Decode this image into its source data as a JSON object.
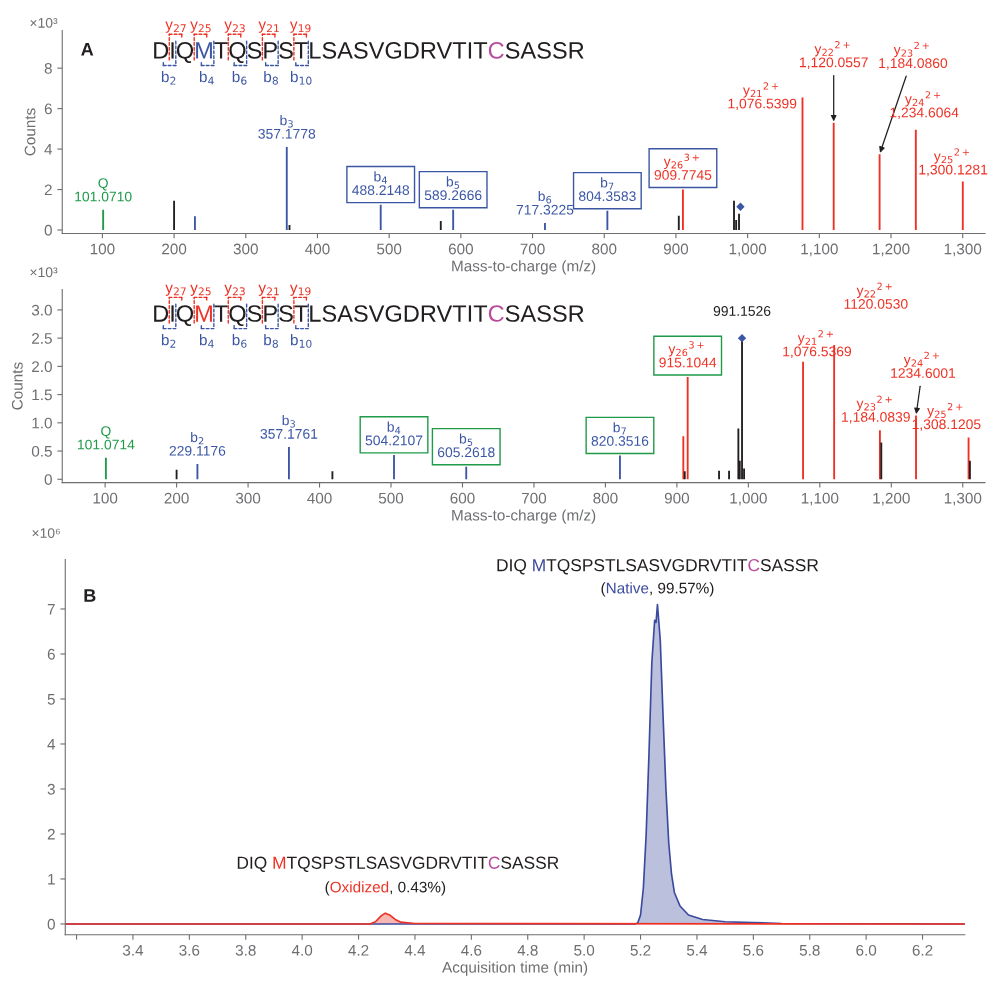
{
  "chart_data": [
    {
      "type": "bar",
      "xlabel": "Mass-to-charge (m/z)",
      "ylabel": "Counts",
      "xlim": [
        44,
        1331
      ],
      "ylim": [
        -0.17,
        9.86
      ],
      "xticks": [
        100,
        200,
        300,
        400,
        500,
        600,
        700,
        800,
        900,
        {
          "value": 1000,
          "label": "1,000"
        },
        {
          "value": 1100,
          "label": "1,100"
        },
        {
          "value": 1200,
          "label": "1,200"
        },
        {
          "value": 1300,
          "label": "1,300"
        }
      ],
      "yticks": [
        0,
        2,
        4,
        6,
        8
      ],
      "series": [
        {
          "color": "#1e9a48",
          "x": [
            101.07
          ],
          "values": [
            1.0
          ]
        },
        {
          "color": "#3b56a5",
          "x": [
            229.1,
            357.18,
            488.21,
            589.27,
            717.32,
            804.36
          ],
          "values": [
            0.68,
            4.1,
            1.25,
            1.0,
            0.35,
            0.95
          ]
        },
        {
          "color": "#ee3124",
          "x": [
            909.77,
            1076.54,
            1120.06,
            1184.09,
            1234.61,
            1300.13
          ],
          "values": [
            2.0,
            6.55,
            5.3,
            3.75,
            4.95,
            2.4
          ]
        },
        {
          "color": "#231f20",
          "x": [
            200,
            361,
            572,
            904,
            981,
            984,
            988
          ],
          "values": [
            1.45,
            0.25,
            0.45,
            0.7,
            1.45,
            0.5,
            0.8
          ]
        },
        {
          "type": "scatter",
          "marker": "diamond",
          "color": "#3b56a5",
          "x": [
            990
          ],
          "values": [
            1.15
          ]
        }
      ],
      "annotations": [
        "×10³",
        "A",
        "DIQ",
        "M",
        "TQSPSTLSASVGDRVTIT",
        "C",
        "SASSR",
        "y$_{27}$",
        "y$_{25}$",
        "y$_{23}$",
        "y$_{21}$",
        "y$_{19}$",
        "b$_{2}$",
        "b$_{4}$",
        "b$_{6}$",
        "b$_{8}$",
        "b$_{10}$",
        {
          "text": "Q\n101.0710",
          "x": 101.07,
          "y": 1.0
        },
        {
          "text": "b$_{3}$\n357.1778",
          "x": 357.18,
          "y": 4.1
        },
        {
          "text": "b$_{4}$\n488.2148",
          "x": 488.21,
          "y": 1.25
        },
        {
          "text": "b$_{5}$\n589.2666",
          "x": 589.27,
          "y": 1.0
        },
        {
          "text": "b$_{6}$\n717.3225",
          "x": 717.32,
          "y": 0.35
        },
        {
          "text": "b$_{7}$\n804.3583",
          "x": 804.36,
          "y": 0.95
        },
        {
          "text": "y$_{26}$$^{3+}$\n909.7745",
          "x": 909.77,
          "y": 2.0
        },
        {
          "text": "y$_{21}$$^{2+}$\n1,076.5399",
          "x": 1076.54,
          "y": 6.55
        },
        {
          "text": "y$_{22}$$^{2+}$\n1,120.0557",
          "x": 1120.06,
          "y": 5.3
        },
        {
          "text": "y$_{23}$$^{2+}$\n1,184.0860",
          "x": 1184.09,
          "y": 3.75
        },
        {
          "text": "y$_{24}$$^{2+}$\n1,234.6064",
          "x": 1234.61,
          "y": 4.95
        },
        {
          "text": "y$_{25}$$^{2+}$\n1,300.1281",
          "x": 1300.13,
          "y": 2.4
        }
      ]
    },
    {
      "type": "bar",
      "xlabel": "Mass-to-charge (m/z)",
      "ylabel": "Counts",
      "xlim": [
        40,
        1331
      ],
      "ylim": [
        -0.06,
        3.36
      ],
      "xticks": [
        100,
        200,
        300,
        400,
        500,
        600,
        700,
        800,
        900,
        {
          "value": 1000,
          "label": "1,000"
        },
        {
          "value": 1100,
          "label": "1,100"
        },
        {
          "value": 1200,
          "label": "1,200"
        },
        {
          "value": 1300,
          "label": "1,300"
        }
      ],
      "yticks": [
        0,
        0.5,
        {
          "value": 1,
          "label": "1.0"
        },
        1.5,
        {
          "value": 2,
          "label": "2.0"
        },
        2.5,
        {
          "value": 3,
          "label": "3.0"
        }
      ],
      "series": [
        {
          "color": "#1e9a48",
          "x": [
            101.07
          ],
          "values": [
            0.38
          ]
        },
        {
          "color": "#3b56a5",
          "x": [
            229.12,
            357.18,
            504.21,
            605.26,
            820.35
          ],
          "values": [
            0.27,
            0.57,
            0.43,
            0.22,
            0.42
          ]
        },
        {
          "color": "#ee3124",
          "x": [
            909,
            915.1,
            1076.54,
            1120.05,
            1184.08,
            1234.6,
            1308.12
          ],
          "values": [
            0.76,
            1.81,
            2.08,
            2.38,
            0.87,
            1.13,
            0.74
          ]
        },
        {
          "color": "#231f20",
          "x": [
            200,
            418,
            911,
            959,
            973,
            986,
            988,
            991.15,
            994,
            1186,
            1310
          ],
          "values": [
            0.17,
            0.14,
            0.14,
            0.15,
            0.15,
            0.9,
            0.33,
            2.47,
            0.19,
            0.65,
            0.33
          ]
        },
        {
          "type": "scatter",
          "marker": "diamond",
          "color": "#3b56a5",
          "x": [
            991.15
          ],
          "values": [
            2.5
          ]
        }
      ],
      "annotations": [
        "×10³",
        "DIQ",
        "M",
        "TQSPSTLSASVGDRVTIT",
        "C",
        "SASSR",
        "y$_{27}$",
        "y$_{25}$",
        "y$_{23}$",
        "y$_{21}$",
        "y$_{19}$",
        "b$_{2}$",
        "b$_{4}$",
        "b$_{6}$",
        "b$_{8}$",
        "b$_{10}$",
        {
          "text": "Q\n101.0714",
          "x": 101.07,
          "y": 0.38
        },
        {
          "text": "b$_{2}$\n229.1176",
          "x": 229.12,
          "y": 0.27
        },
        {
          "text": "b$_{3}$\n357.1761",
          "x": 357.18,
          "y": 0.57
        },
        {
          "text": "b$_{4}$\n504.2107",
          "x": 504.21,
          "y": 0.43
        },
        {
          "text": "b$_{5}$\n605.2618",
          "x": 605.26,
          "y": 0.22
        },
        {
          "text": "b$_{7}$\n820.3516",
          "x": 820.35,
          "y": 0.42
        },
        {
          "text": "y$_{26}$$^{3+}$\n915.1044",
          "x": 915.1,
          "y": 1.81
        },
        {
          "text": "991.1526",
          "x": 991.15,
          "y": 2.5
        },
        {
          "text": "y$_{21}$$^{2+}$\n1,076.5369",
          "x": 1076.54,
          "y": 2.08
        },
        {
          "text": "y$_{22}$$^{2+}$\n1120.0530",
          "x": 1120.05,
          "y": 2.38
        },
        {
          "text": "y$_{23}$$^{2+}$\n1,184.0839",
          "x": 1184.08,
          "y": 0.87
        },
        {
          "text": "y$_{24}$$^{2+}$\n1234.6001",
          "x": 1234.6,
          "y": 1.13
        },
        {
          "text": "y$_{25}$$^{2+}$\n1,308.1205",
          "x": 1308.12,
          "y": 0.74
        }
      ]
    },
    {
      "type": "area",
      "xlabel": "Acquisition time (min)",
      "xlim": [
        3.16,
        6.35
      ],
      "ylim": [
        -0.24,
        8.1
      ],
      "xticks": [
        {
          "value": 3.2,
          "label": null
        },
        3.4,
        3.6,
        3.8,
        {
          "value": 4,
          "label": "4.0"
        },
        4.2,
        4.4,
        4.6,
        4.8,
        {
          "value": 5,
          "label": "5.0"
        },
        5.2,
        5.4,
        5.6,
        5.8,
        {
          "value": 6,
          "label": "6.0"
        },
        6.2
      ],
      "yticks": [
        0,
        1,
        2,
        3,
        4,
        5,
        6,
        7
      ],
      "series": [
        {
          "color": "#3c4a9e",
          "x": [
            3.16,
            5.18,
            5.19,
            5.2,
            5.21,
            5.22,
            5.23,
            5.24,
            5.25,
            5.255,
            5.26,
            5.27,
            5.28,
            5.29,
            5.3,
            5.31,
            5.32,
            5.34,
            5.37,
            5.42,
            5.5,
            5.6,
            5.7,
            6.35
          ],
          "values": [
            0,
            0,
            0.02,
            0.2,
            0.8,
            2.0,
            3.8,
            5.8,
            6.75,
            6.7,
            7.1,
            6.3,
            4.6,
            3.0,
            1.8,
            1.1,
            0.7,
            0.4,
            0.2,
            0.1,
            0.05,
            0.03,
            0.01,
            0
          ]
        },
        {
          "color": "#ee3124",
          "x": [
            3.16,
            4.24,
            4.26,
            4.28,
            4.295,
            4.31,
            4.33,
            4.35,
            4.4,
            6.35
          ],
          "values": [
            0,
            0,
            0.05,
            0.18,
            0.24,
            0.2,
            0.1,
            0.04,
            0.01,
            0
          ]
        }
      ],
      "annotations": [
        "×10⁶",
        "B",
        "DIQ ",
        "M",
        "TQSPSTLSASVGDRVTIT",
        "C",
        "SASSR",
        "(",
        "Native",
        ", 99.57%)",
        "DIQ ",
        "M",
        "TQSPSTLSASVGDRVTIT",
        "C",
        "SASSR",
        "(",
        "Oxidized",
        ", 0.43%)"
      ]
    }
  ]
}
